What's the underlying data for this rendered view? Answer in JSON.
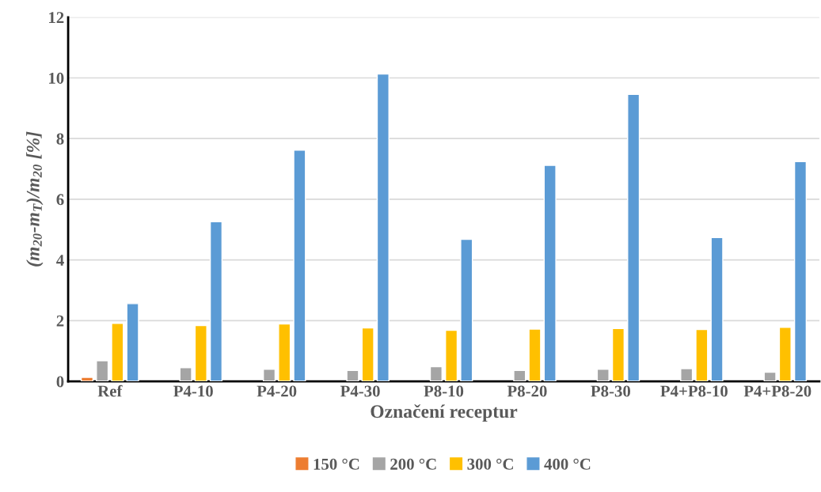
{
  "chart_data": {
    "type": "bar",
    "xlabel": "Označení receptur",
    "ylabel": "(m$_{20}$-m$_{T}$)/m$_{20}$ [%]",
    "categories": [
      "Ref",
      "P4-10",
      "P4-20",
      "P4-30",
      "P8-10",
      "P8-20",
      "P8-30",
      "P4+P8-10",
      "P4+P8-20"
    ],
    "series": [
      {
        "name": "150 °C",
        "color": "#ed7d31",
        "values": [
          0.13,
          null,
          null,
          null,
          null,
          null,
          null,
          null,
          null
        ]
      },
      {
        "name": "200 °C",
        "color": "#a5a5a5",
        "values": [
          0.68,
          0.45,
          0.4,
          0.36,
          0.48,
          0.36,
          0.4,
          0.42,
          0.3
        ]
      },
      {
        "name": "300 °C",
        "color": "#ffc000",
        "values": [
          1.91,
          1.84,
          1.89,
          1.76,
          1.68,
          1.72,
          1.74,
          1.71,
          1.78
        ]
      },
      {
        "name": "400 °C",
        "color": "#5b9bd5",
        "values": [
          2.56,
          5.26,
          7.62,
          10.13,
          4.68,
          7.12,
          9.46,
          4.74,
          7.24
        ]
      }
    ],
    "ylim": [
      0,
      12
    ],
    "yticks": [
      0,
      2,
      4,
      6,
      8,
      10,
      12
    ],
    "grid": "y",
    "legend": "bottom"
  }
}
